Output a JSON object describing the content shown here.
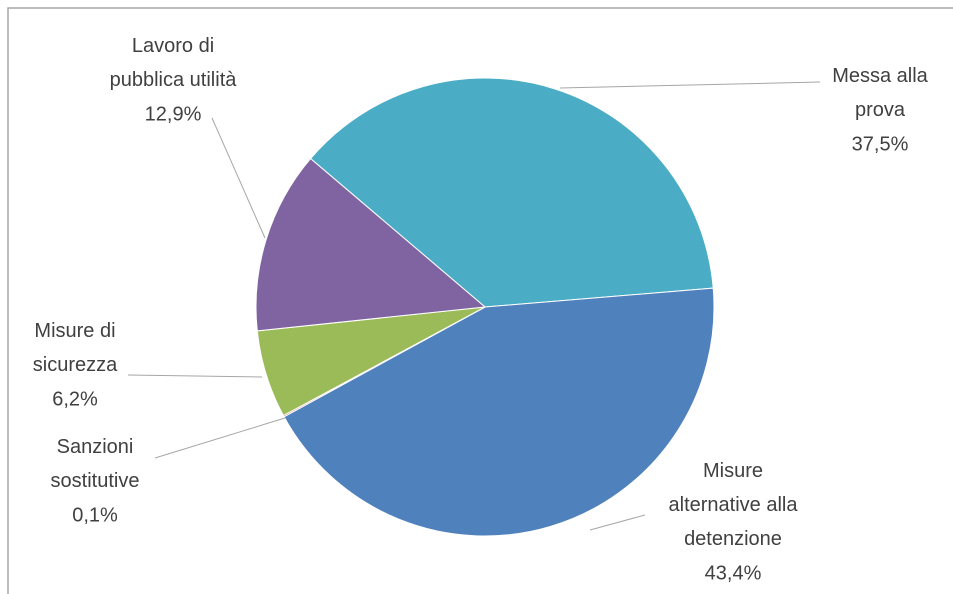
{
  "chart_data": {
    "type": "pie",
    "categories": [
      "Messa alla prova",
      "Misure alternative alla detenzione",
      "Sanzioni sostitutive",
      "Misure di sicurezza",
      "Lavoro di pubblica utilità"
    ],
    "values": [
      37.5,
      43.4,
      0.1,
      6.2,
      12.9
    ],
    "value_labels": [
      "37,5%",
      "43,4%",
      "0,1%",
      "6,2%",
      "12,9%"
    ],
    "colors": [
      "#4bacc6",
      "#4f81bd",
      "#c0504d",
      "#9bbb59",
      "#8064a2"
    ]
  }
}
